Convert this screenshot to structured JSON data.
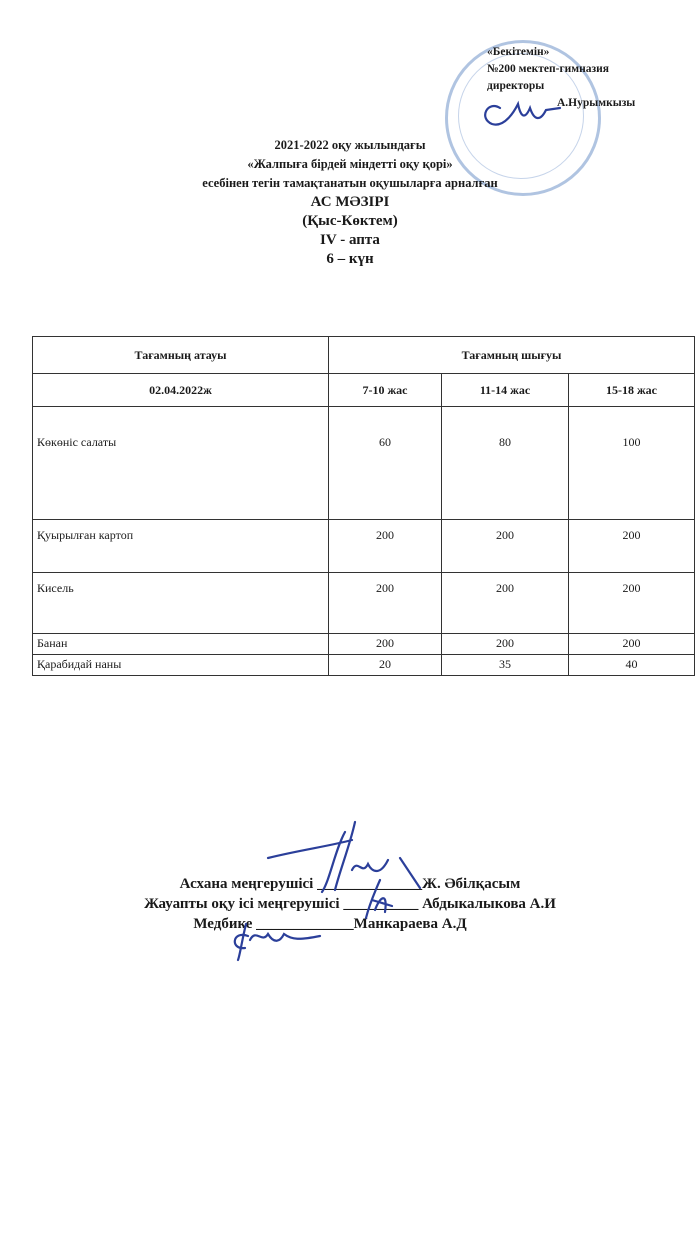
{
  "approval": {
    "line1": "«Бекітемін»",
    "line2": "№200 мектеп-гимназия",
    "line3": "директоры",
    "line4": "А.Нурымкызы"
  },
  "header": {
    "line1": "2021-2022 оқу жылындағы",
    "line2": "«Жалпыға бірдей міндетті оқу қорі»",
    "line3": "есебінен тегін тамақтанатын оқушыларға арналған",
    "title": "АС МӘЗІРІ",
    "season": "(Қыс-Көктем)",
    "week": "IV - апта",
    "day": "6 – күн"
  },
  "table": {
    "col_name": "Тағамның атауы",
    "col_output": "Тағамның шығуы",
    "date": "02.04.2022ж",
    "ages": [
      "7-10 жас",
      "11-14 жас",
      "15-18 жас"
    ],
    "rows": [
      {
        "name": "Көкөніс салаты",
        "values": [
          "60",
          "80",
          "100"
        ]
      },
      {
        "name": "Қуырылған картоп",
        "values": [
          "200",
          "200",
          "200"
        ]
      },
      {
        "name": "Кисель",
        "values": [
          "200",
          "200",
          "200"
        ]
      },
      {
        "name": "Банан",
        "values": [
          "200",
          "200",
          "200"
        ]
      },
      {
        "name": "Қарабидай наны",
        "values": [
          "20",
          "35",
          "40"
        ]
      }
    ]
  },
  "signatures": [
    {
      "role": "Асхана меңгерушісі",
      "blank": "______________",
      "name": "Ж. Әбілқасым"
    },
    {
      "role": "Жауапты оқу ісі меңгерушісі",
      "blank": "__________",
      "name": "Абдыкалыкова А.И"
    },
    {
      "role": "Медбике",
      "blank": "_____________",
      "name": "Манкараева А.Д"
    }
  ],
  "colors": {
    "ink": "#1a1a1a",
    "stamp": "#6f93c9",
    "signature": "#2b3f9a"
  }
}
